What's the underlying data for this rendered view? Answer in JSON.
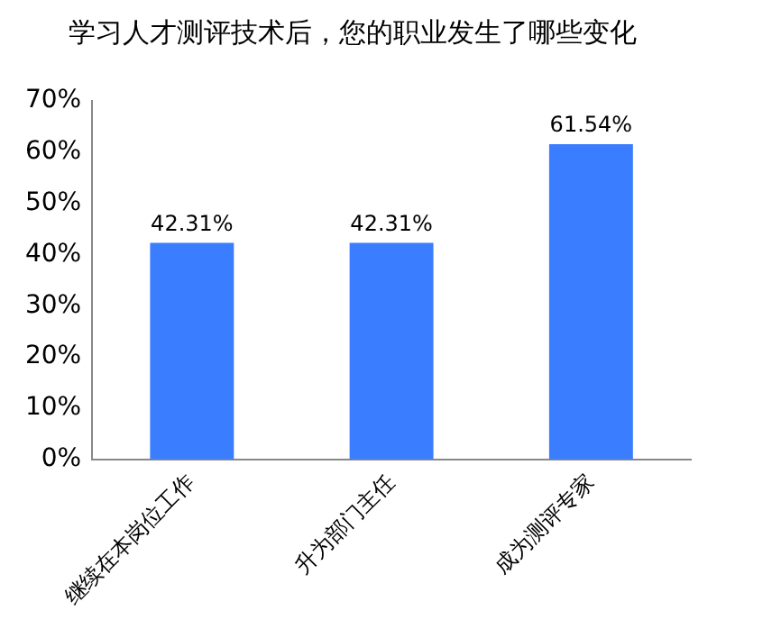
{
  "chart_data": {
    "type": "bar",
    "title": "学习人才测评技术后，您的职业发生了哪些变化",
    "categories": [
      "继续在本岗位工作",
      "升为部门主任",
      "成为测评专家"
    ],
    "values": [
      42.31,
      42.31,
      61.54
    ],
    "color": "#3a7dfe",
    "value_labels": [
      "42.31%",
      "42.31%",
      "61.54%"
    ],
    "ylim": [
      0,
      70
    ],
    "yticks": [
      {
        "value": 0,
        "label": "0%"
      },
      {
        "value": 10,
        "label": "10%"
      },
      {
        "value": 20,
        "label": "20%"
      },
      {
        "value": 30,
        "label": "30%"
      },
      {
        "value": 40,
        "label": "40%"
      },
      {
        "value": 50,
        "label": "50%"
      },
      {
        "value": 60,
        "label": "60%"
      },
      {
        "value": 70,
        "label": "70%"
      }
    ],
    "grid": false,
    "legend": false
  }
}
